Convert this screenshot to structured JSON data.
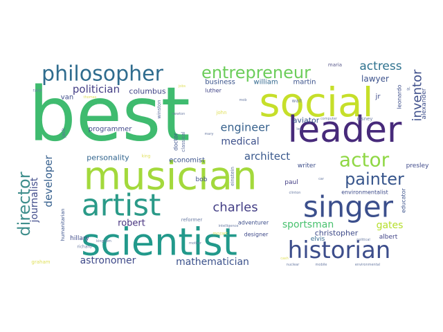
{
  "cloud": {
    "words": [
      {
        "text": "best",
        "color": "#3fbb6f"
      },
      {
        "text": "social",
        "color": "#c6df2a"
      },
      {
        "text": "leader",
        "color": "#472a7a"
      },
      {
        "text": "musician",
        "color": "#a3d93c"
      },
      {
        "text": "scientist",
        "color": "#22998b"
      },
      {
        "text": "singer",
        "color": "#3b4f8c"
      },
      {
        "text": "artist",
        "color": "#2a9a88"
      },
      {
        "text": "philosopher",
        "color": "#2f6c8e"
      },
      {
        "text": "historian",
        "color": "#3c4d8b"
      },
      {
        "text": "entrepreneur",
        "color": "#6ccd5a"
      },
      {
        "text": "actor",
        "color": "#8fd744"
      },
      {
        "text": "painter",
        "color": "#38568c"
      },
      {
        "text": "director",
        "color": "#3f8e8c"
      },
      {
        "text": "charles",
        "color": "#433e85"
      },
      {
        "text": "actress",
        "color": "#2d718e"
      },
      {
        "text": "inventor",
        "color": "#3d4e8a"
      },
      {
        "text": "engineer",
        "color": "#38628d"
      },
      {
        "text": "politician",
        "color": "#433d84"
      },
      {
        "text": "architect",
        "color": "#39588c"
      },
      {
        "text": "medical",
        "color": "#3c508b"
      },
      {
        "text": "developer",
        "color": "#355f8d"
      },
      {
        "text": "journalist",
        "color": "#3e4a89"
      },
      {
        "text": "mathematician",
        "color": "#3b518b"
      },
      {
        "text": "astronomer",
        "color": "#3e4989"
      },
      {
        "text": "sportsman",
        "color": "#48c16e"
      },
      {
        "text": "gates",
        "color": "#b5de2b"
      },
      {
        "text": "robert",
        "color": "#46327e"
      },
      {
        "text": "christopher",
        "color": "#3e4a89"
      },
      {
        "text": "columbus",
        "color": "#414487"
      },
      {
        "text": "lawyer",
        "color": "#3b518b"
      },
      {
        "text": "personality",
        "color": "#32658e"
      },
      {
        "text": "aviator",
        "color": "#39568c"
      },
      {
        "text": "economist",
        "color": "#3b528b"
      },
      {
        "text": "programmer",
        "color": "#3f4788"
      },
      {
        "text": "business",
        "color": "#3a538b"
      },
      {
        "text": "william",
        "color": "#31688e"
      },
      {
        "text": "martin",
        "color": "#3b528b"
      },
      {
        "text": "van",
        "color": "#3e4c8a"
      },
      {
        "text": "luther",
        "color": "#414487"
      },
      {
        "text": "maria",
        "color": "#5a5a8c"
      },
      {
        "text": "leonardo",
        "color": "#3d4e8a"
      },
      {
        "text": "alexander",
        "color": "#3d4e8a"
      },
      {
        "text": "presley",
        "color": "#3e4989"
      },
      {
        "text": "educator",
        "color": "#3b528b"
      },
      {
        "text": "environmentalist",
        "color": "#3e4c8a"
      },
      {
        "text": "paul",
        "color": "#433e85"
      },
      {
        "text": "writer",
        "color": "#3d4e8a"
      },
      {
        "text": "elvis",
        "color": "#31688e"
      },
      {
        "text": "albert",
        "color": "#414487"
      },
      {
        "text": "hillary",
        "color": "#3e4a89"
      },
      {
        "text": "designer",
        "color": "#3e4989"
      },
      {
        "text": "adventurer",
        "color": "#3d4e8a"
      },
      {
        "text": "reformer",
        "color": "#6b7ca4"
      },
      {
        "text": "bob",
        "color": "#3d4e8a"
      },
      {
        "text": "einstein",
        "color": "#5a6d9c"
      },
      {
        "text": "classical",
        "color": "#5a6d9c"
      },
      {
        "text": "doctor",
        "color": "#3b528b"
      },
      {
        "text": "winston",
        "color": "#5a6d9c"
      },
      {
        "text": "jack",
        "color": "#5a6d9c"
      },
      {
        "text": "humanitarian",
        "color": "#3b528b"
      },
      {
        "text": "graham",
        "color": "#e0e05a"
      },
      {
        "text": "richard",
        "color": "#6b7ca4"
      },
      {
        "text": "kingdom",
        "color": "#6b7ca4"
      },
      {
        "text": "mother",
        "color": "#6b7ca4"
      },
      {
        "text": "intelligence",
        "color": "#6b7ca4"
      },
      {
        "text": "mozart",
        "color": "#e0e05a"
      },
      {
        "text": "cash",
        "color": "#e0e05a"
      },
      {
        "text": "nuclear",
        "color": "#6b7ca4"
      },
      {
        "text": "mobile",
        "color": "#6b7ca4"
      },
      {
        "text": "environmental",
        "color": "#6b7ca4"
      },
      {
        "text": "clinton",
        "color": "#6b7ca4"
      },
      {
        "text": "car",
        "color": "#6b7ca4"
      },
      {
        "text": "king",
        "color": "#e0e05a"
      },
      {
        "text": "newton",
        "color": "#6b7ca4"
      },
      {
        "text": "mary",
        "color": "#6b7ca4"
      },
      {
        "text": "john",
        "color": "#e0e05a"
      },
      {
        "text": "jobs",
        "color": "#e0e05a"
      },
      {
        "text": "race",
        "color": "#6b7ca4"
      },
      {
        "text": "thomas",
        "color": "#e0e05a"
      },
      {
        "text": "walt",
        "color": "#6b7ca4"
      },
      {
        "text": "jr",
        "color": "#3e4c8a"
      },
      {
        "text": "al",
        "color": "#6b7ca4"
      },
      {
        "text": "disney",
        "color": "#6b7ca4"
      },
      {
        "text": "computer",
        "color": "#6b7ca4"
      },
      {
        "text": "political",
        "color": "#6b7ca4"
      },
      {
        "text": "lee",
        "color": "#6b7ca4"
      },
      {
        "text": "mob",
        "color": "#6b7ca4"
      }
    ]
  }
}
